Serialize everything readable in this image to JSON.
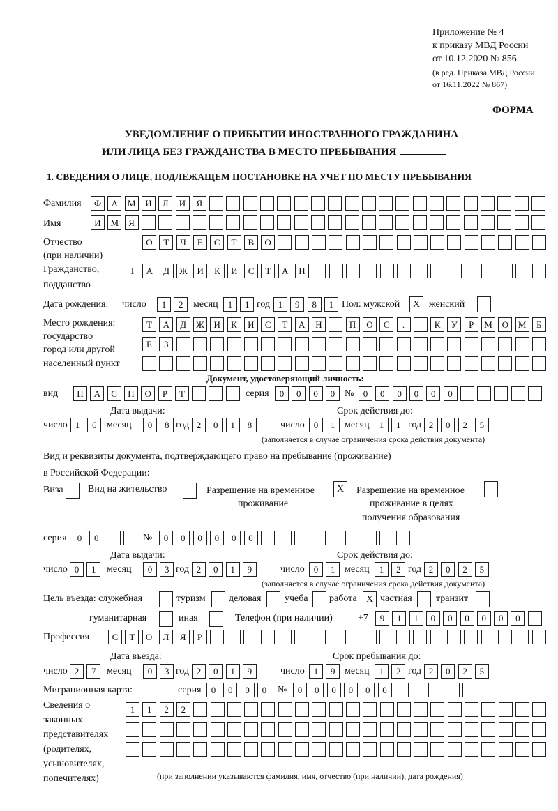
{
  "header": {
    "appendix": "Приложение № 4",
    "order": "к приказу МВД России",
    "order_date": "от 10.12.2020 № 856",
    "revision_1": "(в ред. Приказа МВД России",
    "revision_2": "от 16.11.2022 № 867)",
    "form_label": "ФОРМА",
    "title_1": "УВЕДОМЛЕНИЕ О ПРИБЫТИИ ИНОСТРАННОГО ГРАЖДАНИНА",
    "title_2": "ИЛИ ЛИЦА БЕЗ ГРАЖДАНСТВА В МЕСТО ПРЕБЫВАНИЯ",
    "section_1": "1. СВЕДЕНИЯ О ЛИЦЕ, ПОДЛЕЖАЩЕМ ПОСТАНОВКЕ НА УЧЕТ ПО МЕСТУ ПРЕБЫВАНИЯ"
  },
  "labels": {
    "surname": "Фамилия",
    "name": "Имя",
    "patronymic": "Отчество",
    "patronymic_note": "(при наличии)",
    "citizenship_1": "Гражданство,",
    "citizenship_2": "подданство",
    "birth_date": "Дата рождения:",
    "day": "число",
    "month": "месяц",
    "year": "год",
    "sex_male": "Пол: мужской",
    "sex_female": "женский",
    "birth_place_1": "Место рождения:",
    "birth_place_2": "государство",
    "birth_place_3": "город или другой",
    "birth_place_4": "населенный пункт",
    "id_doc": "Документ, удостоверяющий личность:",
    "kind": "вид",
    "series": "серия",
    "number": "№",
    "issue_date": "Дата выдачи:",
    "valid_until": "Срок действия до:",
    "validity_note": "(заполняется в случае ограничения срока действия документа)",
    "right_doc_1": "Вид и реквизиты документа, подтверждающего право на пребывание (проживание)",
    "right_doc_2": "в Российской Федерации:",
    "visa": "Виза",
    "residence_permit": "Вид на жительство",
    "temp_residence_1": "Разрешение на временное",
    "temp_residence_2": "проживание",
    "temp_edu_1": "Разрешение на временное",
    "temp_edu_2": "проживание в целях",
    "temp_edu_3": "получения образования",
    "purpose": "Цель въезда: служебная",
    "tourism": "туризм",
    "business": "деловая",
    "study": "учеба",
    "work": "работа",
    "private": "частная",
    "transit": "транзит",
    "humanitarian": "гуманитарная",
    "other": "иная",
    "phone": "Телефон (при наличии)",
    "phone_prefix": "+7",
    "profession": "Профессия",
    "entry_date": "Дата въезда:",
    "stay_until": "Срок пребывания до:",
    "migration_card": "Миграционная карта:",
    "reps_1": "Сведения о",
    "reps_2": "законных",
    "reps_3": "представителях",
    "reps_4": "(родителях,",
    "reps_5": "усыновителях,",
    "reps_6": "попечителях)",
    "reps_note": "(при заполнении указываются фамилия, имя, отчество (при наличии), дата рождения)"
  },
  "person": {
    "surname": [
      "Ф",
      "А",
      "М",
      "И",
      "Л",
      "И",
      "Я",
      "",
      "",
      "",
      "",
      "",
      "",
      "",
      "",
      "",
      "",
      "",
      "",
      "",
      "",
      "",
      "",
      "",
      "",
      "",
      ""
    ],
    "name": [
      "И",
      "М",
      "Я",
      "",
      "",
      "",
      "",
      "",
      "",
      "",
      "",
      "",
      "",
      "",
      "",
      "",
      "",
      "",
      "",
      "",
      "",
      "",
      "",
      "",
      "",
      "",
      ""
    ],
    "patronymic": [
      "О",
      "Т",
      "Ч",
      "Е",
      "С",
      "Т",
      "В",
      "О",
      "",
      "",
      "",
      "",
      "",
      "",
      "",
      "",
      "",
      "",
      "",
      "",
      "",
      "",
      "",
      ""
    ],
    "citizenship": [
      "Т",
      "А",
      "Д",
      "Ж",
      "И",
      "К",
      "И",
      "С",
      "Т",
      "А",
      "Н",
      "",
      "",
      "",
      "",
      "",
      "",
      "",
      "",
      "",
      "",
      "",
      "",
      "",
      ""
    ],
    "birth_day": [
      "1",
      "2"
    ],
    "birth_month": [
      "1",
      "1"
    ],
    "birth_year": [
      "1",
      "9",
      "8",
      "1"
    ],
    "sex_male": "X",
    "sex_female": "",
    "birth_place_1": [
      "Т",
      "А",
      "Д",
      "Ж",
      "И",
      "К",
      "И",
      "С",
      "Т",
      "А",
      "Н",
      "",
      "П",
      "О",
      "С",
      ".",
      "",
      "К",
      "У",
      "Р",
      "М",
      "О",
      "М",
      "Б"
    ],
    "birth_place_2": [
      "Е",
      "З",
      "",
      "",
      "",
      "",
      "",
      "",
      "",
      "",
      "",
      "",
      "",
      "",
      "",
      "",
      "",
      "",
      "",
      "",
      "",
      "",
      "",
      ""
    ],
    "birth_place_3": [
      "",
      "",
      "",
      "",
      "",
      "",
      "",
      "",
      "",
      "",
      "",
      "",
      "",
      "",
      "",
      "",
      "",
      "",
      "",
      "",
      "",
      "",
      "",
      ""
    ]
  },
  "id_document": {
    "kind": [
      "П",
      "А",
      "С",
      "П",
      "О",
      "Р",
      "Т",
      "",
      "",
      ""
    ],
    "series": [
      "0",
      "0",
      "0",
      "0"
    ],
    "number": [
      "0",
      "0",
      "0",
      "0",
      "0",
      "0",
      "",
      "",
      "",
      "",
      ""
    ],
    "issue_day": [
      "1",
      "6"
    ],
    "issue_month": [
      "0",
      "8"
    ],
    "issue_year": [
      "2",
      "0",
      "1",
      "8"
    ],
    "valid_day": [
      "0",
      "1"
    ],
    "valid_month": [
      "1",
      "1"
    ],
    "valid_year": [
      "2",
      "0",
      "2",
      "5"
    ]
  },
  "right_document": {
    "visa": "",
    "residence_permit": "",
    "temp_residence": "X",
    "temp_edu": "",
    "series": [
      "0",
      "0",
      "",
      ""
    ],
    "number": [
      "0",
      "0",
      "0",
      "0",
      "0",
      "0",
      "",
      "",
      "",
      "",
      "",
      "",
      "",
      "",
      ""
    ],
    "issue_day": [
      "0",
      "1"
    ],
    "issue_month": [
      "0",
      "3"
    ],
    "issue_year": [
      "2",
      "0",
      "1",
      "9"
    ],
    "valid_day": [
      "0",
      "1"
    ],
    "valid_month": [
      "1",
      "2"
    ],
    "valid_year": [
      "2",
      "0",
      "2",
      "5"
    ]
  },
  "purpose": {
    "official": "",
    "tourism": "",
    "business": "",
    "study": "",
    "work": "X",
    "private": "",
    "transit": "",
    "humanitarian": "",
    "other": ""
  },
  "phone": [
    "9",
    "1",
    "1",
    "0",
    "0",
    "0",
    "0",
    "0",
    "0",
    ""
  ],
  "profession": [
    "С",
    "Т",
    "О",
    "Л",
    "Я",
    "Р",
    "",
    "",
    "",
    "",
    "",
    "",
    "",
    "",
    "",
    "",
    "",
    "",
    "",
    "",
    "",
    "",
    "",
    "",
    "",
    ""
  ],
  "entry": {
    "entry_day": [
      "2",
      "7"
    ],
    "entry_month": [
      "0",
      "3"
    ],
    "entry_year": [
      "2",
      "0",
      "1",
      "9"
    ],
    "stay_day": [
      "1",
      "9"
    ],
    "stay_month": [
      "1",
      "2"
    ],
    "stay_year": [
      "2",
      "0",
      "2",
      "5"
    ]
  },
  "migration_card": {
    "series": [
      "0",
      "0",
      "0",
      "0"
    ],
    "number": [
      "0",
      "0",
      "0",
      "0",
      "0",
      "0",
      "",
      "",
      "",
      "",
      ""
    ]
  },
  "representatives": {
    "row_1": [
      "1",
      "1",
      "2",
      "2",
      "",
      "",
      "",
      "",
      "",
      "",
      "",
      "",
      "",
      "",
      "",
      "",
      "",
      "",
      "",
      "",
      "",
      "",
      "",
      "",
      ""
    ],
    "row_2": [
      "",
      "",
      "",
      "",
      "",
      "",
      "",
      "",
      "",
      "",
      "",
      "",
      "",
      "",
      "",
      "",
      "",
      "",
      "",
      "",
      "",
      "",
      "",
      "",
      ""
    ],
    "row_3": [
      "",
      "",
      "",
      "",
      "",
      "",
      "",
      "",
      "",
      "",
      "",
      "",
      "",
      "",
      "",
      "",
      "",
      "",
      "",
      "",
      "",
      "",
      "",
      "",
      ""
    ]
  }
}
